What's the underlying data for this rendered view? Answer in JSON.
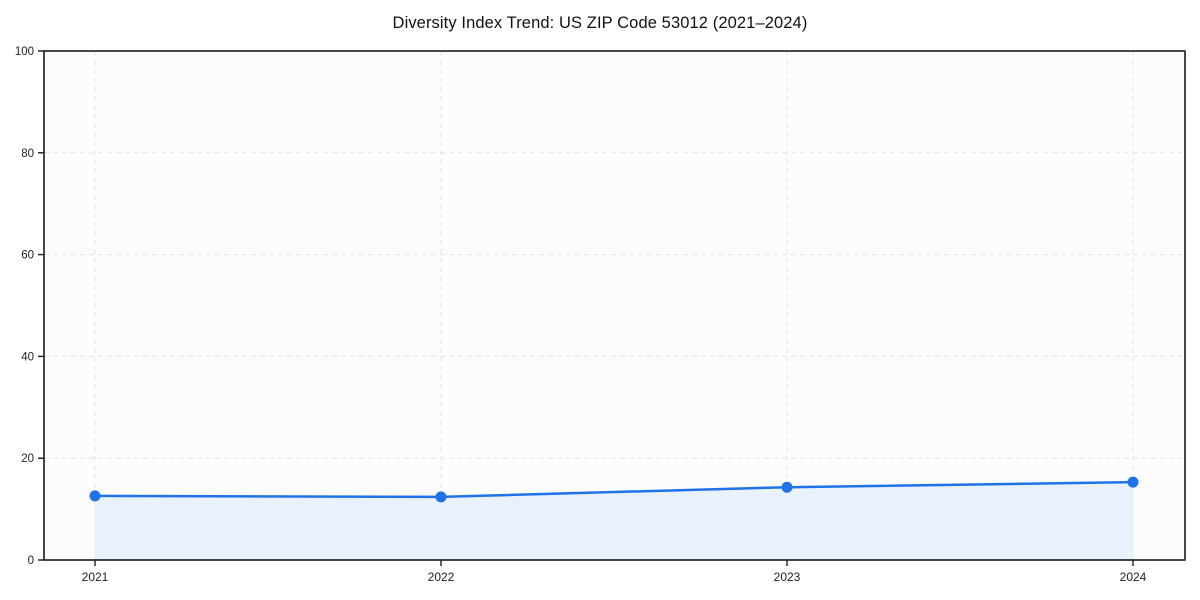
{
  "chart_data": {
    "type": "area",
    "title": "Diversity Index Trend: US ZIP Code 53012 (2021–2024)",
    "categories": [
      "2021",
      "2022",
      "2023",
      "2024"
    ],
    "series": [
      {
        "name": "Diversity Index",
        "values": [
          12.6,
          12.4,
          14.3,
          15.3
        ]
      }
    ],
    "xlabel": "",
    "ylabel": "",
    "ylim": [
      0,
      100
    ],
    "yticks": [
      0,
      20,
      40,
      60,
      80,
      100
    ],
    "grid": "dashed-both-axes",
    "legend": "none",
    "colors": {
      "line": "#1f72e8",
      "marker": "#1f72e8",
      "area_fill": "#e9f1fc",
      "grid": "#e4e4e4",
      "axis": "#1a1a1a",
      "tick_text": "#222222",
      "plot_bg": "#fcfcfd",
      "page_bg": "#ffffff"
    }
  }
}
